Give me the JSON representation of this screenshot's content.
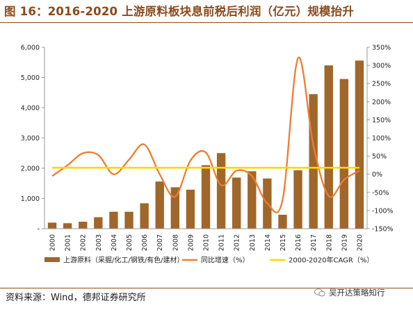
{
  "header": {
    "title": "图 16：2016-2020 上游原料板块息前税后利润（亿元）规模抬升"
  },
  "footer": {
    "source": "资料来源：Wind，德邦证券研究所",
    "watermark": "吴开达策略知行"
  },
  "chart_data": {
    "type": "bar",
    "categories": [
      "2000",
      "2001",
      "2002",
      "2003",
      "2004",
      "2005",
      "2006",
      "2007",
      "2008",
      "2009",
      "2010",
      "2011",
      "2012",
      "2013",
      "2014",
      "2015",
      "2016",
      "2017",
      "2018",
      "2019",
      "2020"
    ],
    "series": [
      {
        "name": "上游原料（采掘/化工/钢铁/有色/建材）",
        "type": "bar",
        "axis": "left",
        "color": "#A0662A",
        "values": [
          200,
          180,
          230,
          380,
          560,
          560,
          840,
          1560,
          1370,
          1290,
          2100,
          2500,
          1690,
          1900,
          1660,
          460,
          1930,
          4450,
          5400,
          4950,
          5560
        ]
      },
      {
        "name": "同比增速（%）",
        "type": "line",
        "axis": "right",
        "color": "#ED7D31",
        "values": [
          -5,
          25,
          58,
          53,
          0,
          40,
          82,
          0,
          -62,
          38,
          60,
          -30,
          10,
          -5,
          -80,
          -70,
          320,
          80,
          -60,
          -15,
          10
        ]
      },
      {
        "name": "2000-2020年CAGR（%）",
        "type": "line",
        "axis": "right",
        "color": "#FFD700",
        "values": [
          18,
          18,
          18,
          18,
          18,
          18,
          18,
          18,
          18,
          18,
          18,
          18,
          18,
          18,
          18,
          18,
          18,
          18,
          18,
          18,
          18
        ]
      }
    ],
    "y_left": {
      "min": 0,
      "max": 6000,
      "ticks": [
        0,
        1000,
        2000,
        3000,
        4000,
        5000,
        6000
      ],
      "tick_labels": [
        "-",
        "1,000",
        "2,000",
        "3,000",
        "4,000",
        "5,000",
        "6,000"
      ]
    },
    "y_right": {
      "min": -150,
      "max": 350,
      "ticks": [
        -150,
        -100,
        -50,
        0,
        50,
        100,
        150,
        200,
        250,
        300,
        350
      ],
      "tick_labels": [
        "-150%",
        "-100%",
        "-50%",
        "0%",
        "50%",
        "100%",
        "150%",
        "200%",
        "250%",
        "300%",
        "350%"
      ]
    },
    "legend_position": "bottom",
    "grid": false
  }
}
